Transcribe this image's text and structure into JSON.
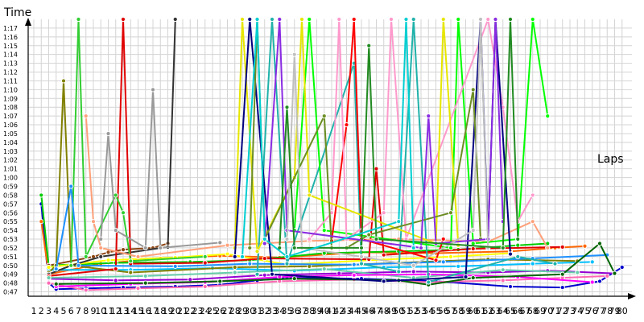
{
  "chart_data": {
    "type": "line",
    "title": "",
    "xlabel": "Laps",
    "ylabel": "Time",
    "grid": true,
    "legend": "none",
    "xlim": [
      1,
      80
    ],
    "ylim": [
      "0:46.5",
      "1:18"
    ],
    "y_ticks": [
      "0:47",
      "0:48",
      "0:49",
      "0:50",
      "0:51",
      "0:52",
      "0:53",
      "0:54",
      "0:55",
      "0:56",
      "0:57",
      "0:58",
      "0:59",
      "1:00",
      "1:01",
      "1:02",
      "1:03",
      "1:04",
      "1:05",
      "1:06",
      "1:07",
      "1:08",
      "1:09",
      "1:10",
      "1:11",
      "1:12",
      "1:13",
      "1:14",
      "1:15",
      "1:16",
      "1:17"
    ],
    "x_ticks": [
      "1",
      "2",
      "3",
      "4",
      "5",
      "6",
      "7",
      "8",
      "9",
      "10",
      "11",
      "12",
      "13",
      "14",
      "15",
      "16",
      "17",
      "18",
      "19",
      "20",
      "21",
      "22",
      "23",
      "24",
      "25",
      "26",
      "27",
      "28",
      "29",
      "30",
      "31",
      "32",
      "33",
      "34",
      "35",
      "36",
      "37",
      "38",
      "39",
      "40",
      "41",
      "42",
      "43",
      "44",
      "45",
      "46",
      "47",
      "48",
      "49",
      "50",
      "51",
      "52",
      "53",
      "54",
      "55",
      "56",
      "57",
      "58",
      "59",
      "60",
      "61",
      "62",
      "63",
      "64",
      "65",
      "66",
      "67",
      "68",
      "69",
      "70",
      "71",
      "72",
      "73",
      "74",
      "75",
      "76",
      "77",
      "78",
      "79",
      "80"
    ],
    "series": [
      {
        "color": "#0000cc",
        "values": [
          [
            2,
            "0:57"
          ],
          [
            3,
            "0:48"
          ],
          [
            4,
            "0:47.3"
          ],
          [
            8,
            "0:47.4"
          ],
          [
            13,
            "0:47.5"
          ],
          [
            20,
            "0:47.6"
          ],
          [
            26,
            "0:47.8"
          ],
          [
            31,
            "0:48.3"
          ],
          [
            35,
            "0:48.6"
          ],
          [
            45,
            "0:48.5"
          ],
          [
            55,
            "0:48.2"
          ],
          [
            65,
            "0:47.6"
          ],
          [
            72,
            "0:47.5"
          ],
          [
            77,
            "0:48.2"
          ],
          [
            80,
            "0:49.8"
          ]
        ]
      },
      {
        "color": "#ff6600",
        "values": [
          [
            2,
            "0:55"
          ],
          [
            3,
            "0:49"
          ],
          [
            10,
            "0:50.2"
          ],
          [
            18,
            "0:50.8"
          ],
          [
            26,
            "0:51.1"
          ],
          [
            34,
            "0:50.9"
          ],
          [
            45,
            "0:51.5"
          ],
          [
            55,
            "0:51.4"
          ],
          [
            65,
            "0:51.6"
          ],
          [
            71,
            "0:52"
          ],
          [
            75,
            "0:52.2"
          ]
        ]
      },
      {
        "color": "#00cc00",
        "values": [
          [
            2,
            "0:58"
          ],
          [
            3,
            "0:50"
          ],
          [
            12,
            "0:50.3"
          ],
          [
            22,
            "0:50.4"
          ],
          [
            30,
            "0:50.6"
          ],
          [
            40,
            "0:51.4"
          ],
          [
            50,
            "0:51.6"
          ],
          [
            58,
            "0:51.8"
          ],
          [
            66,
            "0:52.3"
          ],
          [
            70,
            "0:52.5"
          ]
        ]
      },
      {
        "color": "#ff69b4",
        "values": [
          [
            3,
            "0:48"
          ],
          [
            8,
            "0:47.2"
          ],
          [
            15,
            "0:47.4"
          ],
          [
            24,
            "0:47.6"
          ],
          [
            34,
            "0:48.2"
          ],
          [
            44,
            "0:48.4"
          ],
          [
            54,
            "0:48.1"
          ],
          [
            64,
            "0:48.3"
          ],
          [
            72,
            "0:48.6"
          ],
          [
            78,
            "0:48.8"
          ]
        ]
      },
      {
        "color": "#8b4513",
        "values": [
          [
            3,
            "0:50"
          ],
          [
            9,
            "0:51"
          ],
          [
            11,
            "0:51.5"
          ],
          [
            13,
            "0:51.8"
          ],
          [
            17,
            "0:52"
          ],
          [
            19,
            "0:52.5"
          ]
        ]
      },
      {
        "color": "#00bfff",
        "values": [
          [
            3,
            "0:49.5"
          ],
          [
            14,
            "0:49.5"
          ],
          [
            25,
            "0:49.7"
          ],
          [
            36,
            "0:49.4"
          ],
          [
            48,
            "0:49.8"
          ],
          [
            58,
            "0:49.9"
          ],
          [
            68,
            "0:50.2"
          ],
          [
            76,
            "0:50.4"
          ]
        ]
      },
      {
        "color": "#9400d3",
        "values": [
          [
            3,
            "0:48.5"
          ],
          [
            12,
            "0:48.3"
          ],
          [
            22,
            "0:48.4"
          ],
          [
            32,
            "0:48.9"
          ],
          [
            42,
            "0:49.1"
          ],
          [
            52,
            "0:49.3"
          ],
          [
            62,
            "0:49.2"
          ],
          [
            70,
            "0:49.4"
          ],
          [
            79,
            "0:49.1"
          ]
        ]
      },
      {
        "color": "#ffff00",
        "values": [
          [
            3,
            "0:49.8"
          ],
          [
            11,
            "0:50.6"
          ],
          [
            20,
            "0:50.9"
          ],
          [
            27,
            "0:51.3"
          ],
          [
            35,
            "0:50.1"
          ],
          [
            46,
            "0:50.6"
          ],
          [
            57,
            "0:51"
          ],
          [
            65,
            "0:51.4"
          ]
        ]
      },
      {
        "color": "#808000",
        "values": [
          [
            3,
            "0:49.2"
          ],
          [
            4,
            "0:50"
          ],
          [
            5,
            "1:11"
          ],
          [
            6,
            "0:50"
          ],
          [
            14,
            "0:49.2"
          ],
          [
            28,
            "0:49.8"
          ],
          [
            38,
            "0:49.9"
          ],
          [
            50,
            "0:50.3"
          ],
          [
            62,
            "0:50.7"
          ],
          [
            74,
            "0:50.5"
          ]
        ]
      },
      {
        "color": "#333333",
        "values": [
          [
            3,
            "0:49"
          ],
          [
            6,
            "0:50"
          ],
          [
            10,
            "0:51"
          ],
          [
            19,
            "0:52.1"
          ],
          [
            20,
            "1:18"
          ]
        ]
      },
      {
        "color": "#e00000",
        "values": [
          [
            3,
            "0:48.8"
          ],
          [
            12,
            "0:49.6"
          ],
          [
            13,
            "1:18"
          ],
          [
            14,
            "0:50.2"
          ],
          [
            24,
            "0:50.3"
          ],
          [
            32,
            "0:50.8"
          ],
          [
            46,
            "0:50.7"
          ],
          [
            47,
            "1:01"
          ],
          [
            48,
            "0:51.2"
          ],
          [
            60,
            "0:51.9"
          ],
          [
            72,
            "0:52.1"
          ]
        ]
      },
      {
        "color": "#32cd32",
        "values": [
          [
            6,
            "0:50"
          ],
          [
            7,
            "1:18"
          ],
          [
            8,
            "0:51"
          ],
          [
            12,
            "0:58"
          ],
          [
            13,
            "0:56"
          ],
          [
            14,
            "0:50.5"
          ],
          [
            24,
            "0:51"
          ]
        ]
      },
      {
        "color": "#999999",
        "values": [
          [
            10,
            "0:53"
          ],
          [
            11,
            "1:05"
          ],
          [
            12,
            "0:54"
          ],
          [
            16,
            "0:52"
          ],
          [
            17,
            "1:10"
          ],
          [
            18,
            "0:52"
          ],
          [
            26,
            "0:52.6"
          ]
        ]
      },
      {
        "color": "#66cdaa",
        "values": [
          [
            3,
            "0:48.6"
          ],
          [
            16,
            "0:48.8"
          ],
          [
            28,
            "0:49.2"
          ],
          [
            40,
            "0:49.6"
          ],
          [
            52,
            "0:48.6"
          ],
          [
            64,
            "0:49.5"
          ],
          [
            74,
            "0:49.2"
          ]
        ]
      },
      {
        "color": "#ffa07a",
        "values": [
          [
            8,
            "1:07"
          ],
          [
            9,
            "0:55"
          ],
          [
            10,
            "0:52"
          ],
          [
            15,
            "0:51"
          ],
          [
            27,
            "0:52.3"
          ],
          [
            38,
            "0:52.8"
          ],
          [
            50,
            "0:53"
          ],
          [
            62,
            "0:52.7"
          ],
          [
            68,
            "0:55"
          ],
          [
            70,
            "0:52"
          ]
        ]
      },
      {
        "color": "#1e90ff",
        "values": [
          [
            4,
            "0:49.6"
          ],
          [
            6,
            "0:59"
          ],
          [
            7,
            "0:50"
          ],
          [
            20,
            "0:49.9"
          ],
          [
            30,
            "0:50.2"
          ],
          [
            44,
            "0:50.1"
          ],
          [
            56,
            "0:50.4"
          ],
          [
            68,
            "0:50.8"
          ],
          [
            78,
            "0:51.2"
          ]
        ]
      },
      {
        "color": "#ff00ff",
        "values": [
          [
            4,
            "0:47.6"
          ],
          [
            14,
            "0:47.9"
          ],
          [
            24,
            "0:48.1"
          ],
          [
            34,
            "0:48.7"
          ],
          [
            44,
            "0:48.9"
          ],
          [
            54,
            "0:49"
          ],
          [
            66,
            "0:48.7"
          ],
          [
            76,
            "0:48.1"
          ]
        ]
      },
      {
        "color": "#006400",
        "values": [
          [
            4,
            "0:47.9"
          ],
          [
            16,
            "0:48"
          ],
          [
            26,
            "0:48.2"
          ],
          [
            36,
            "0:48.5"
          ],
          [
            50,
            "0:48.3"
          ],
          [
            54,
            "0:47.8"
          ],
          [
            60,
            "0:48.6"
          ],
          [
            72,
            "0:49"
          ],
          [
            77,
            "0:52.5"
          ],
          [
            79,
            "0:49.1"
          ]
        ]
      },
      {
        "color": "#20b2aa",
        "values": [
          [
            31,
            "0:49"
          ],
          [
            33,
            "1:18"
          ],
          [
            35,
            "0:50.2"
          ],
          [
            44,
            "1:13"
          ],
          [
            45,
            "0:50.2"
          ],
          [
            50,
            "0:49.3"
          ],
          [
            52,
            "1:18"
          ],
          [
            54,
            "0:48.1"
          ],
          [
            66,
            "0:51"
          ],
          [
            71,
            "0:50.2"
          ]
        ]
      },
      {
        "color": "#00ff00",
        "values": [
          [
            36,
            "0:54"
          ],
          [
            38,
            "1:18"
          ],
          [
            40,
            "0:54"
          ],
          [
            57,
            "0:52"
          ],
          [
            58,
            "1:18"
          ],
          [
            60,
            "0:52.5"
          ],
          [
            66,
            "0:53"
          ],
          [
            68,
            "1:18"
          ],
          [
            70,
            "1:07"
          ]
        ]
      },
      {
        "color": "#ff0000",
        "values": [
          [
            41,
            "0:52.8"
          ],
          [
            43,
            "1:06"
          ],
          [
            44,
            "1:18"
          ],
          [
            45,
            "0:53"
          ],
          [
            55,
            "0:50.6"
          ],
          [
            56,
            "0:53"
          ]
        ]
      },
      {
        "color": "#ff99cc",
        "values": [
          [
            38,
            "0:53"
          ],
          [
            41,
            "0:56"
          ],
          [
            42,
            "1:18"
          ],
          [
            43,
            "0:53"
          ],
          [
            48,
            "0:56"
          ],
          [
            49,
            "1:18"
          ],
          [
            51,
            "0:53"
          ],
          [
            62,
            "1:18"
          ],
          [
            64,
            "1:08"
          ],
          [
            66,
            "0:55"
          ],
          [
            68,
            "0:58"
          ]
        ]
      },
      {
        "color": "#e6e600",
        "values": [
          [
            28,
            "0:52"
          ],
          [
            29,
            "1:18"
          ],
          [
            31,
            "0:51.6"
          ],
          [
            36,
            "1:00"
          ],
          [
            37,
            "1:18"
          ],
          [
            38,
            "0:58"
          ],
          [
            55,
            "0:52.5"
          ],
          [
            56,
            "1:18"
          ],
          [
            58,
            "0:52.3"
          ]
        ]
      },
      {
        "color": "#000080",
        "values": [
          [
            28,
            "0:51"
          ],
          [
            30,
            "1:18"
          ],
          [
            33,
            "0:49"
          ],
          [
            48,
            "0:48.2"
          ],
          [
            59,
            "0:48.7"
          ],
          [
            61,
            "1:18"
          ],
          [
            62,
            "0:53"
          ],
          [
            63,
            "1:18"
          ],
          [
            65,
            "0:51.3"
          ]
        ]
      },
      {
        "color": "#6b8e23",
        "values": [
          [
            30,
            "0:52"
          ],
          [
            31,
            "1:18"
          ],
          [
            32,
            "0:53"
          ],
          [
            40,
            "1:07"
          ],
          [
            41,
            "0:52"
          ],
          [
            43,
            "0:52"
          ],
          [
            46,
            "0:53.5"
          ],
          [
            57,
            "0:56"
          ],
          [
            60,
            "1:10"
          ],
          [
            61,
            "0:53"
          ]
        ]
      },
      {
        "color": "#8a2be2",
        "values": [
          [
            32,
            "0:52.5"
          ],
          [
            34,
            "1:18"
          ],
          [
            35,
            "0:54"
          ],
          [
            53,
            "0:52"
          ],
          [
            54,
            "1:07"
          ],
          [
            55,
            "0:52.5"
          ],
          [
            62,
            "0:53"
          ],
          [
            63,
            "1:18"
          ],
          [
            64,
            "0:55"
          ]
        ]
      },
      {
        "color": "#c0c0c0",
        "values": [
          [
            35,
            "0:53"
          ],
          [
            36,
            "1:14"
          ],
          [
            37,
            "0:52"
          ],
          [
            45,
            "0:51"
          ],
          [
            52,
            "0:50"
          ],
          [
            60,
            "0:54"
          ],
          [
            61,
            "1:18"
          ],
          [
            62,
            "0:52"
          ]
        ]
      },
      {
        "color": "#228b22",
        "values": [
          [
            34,
            "0:52"
          ],
          [
            35,
            "1:08"
          ],
          [
            36,
            "0:52"
          ],
          [
            45,
            "0:52"
          ],
          [
            46,
            "1:15"
          ],
          [
            47,
            "0:53"
          ],
          [
            64,
            "0:52"
          ],
          [
            65,
            "1:18"
          ],
          [
            66,
            "0:53"
          ]
        ]
      },
      {
        "color": "#00ced1",
        "values": [
          [
            29,
            "0:51"
          ],
          [
            31,
            "1:18"
          ],
          [
            32,
            "0:53"
          ],
          [
            35,
            "0:51"
          ],
          [
            50,
            "0:55"
          ],
          [
            51,
            "1:18"
          ],
          [
            52,
            "0:52"
          ]
        ]
      }
    ]
  }
}
